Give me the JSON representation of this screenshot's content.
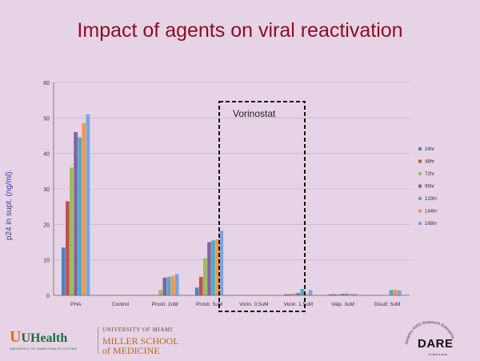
{
  "slide": {
    "title": "Impact of agents on viral reactivation",
    "annotation": "Vorinostat",
    "footer": {
      "uhealth": "UHealth",
      "uhealth_sub": "UNIVERSITY OF MIAMI HEALTH SYSTEM",
      "university": "UNIVERSITY OF MIAMI",
      "school_line1": "MILLER SCHOOL",
      "school_line2": "of MEDICINE",
      "dare": "DARE",
      "dare_ring": "Delaney AIDS Research Enterprise",
      "dare_sub": "to find a cure"
    }
  },
  "chart_data": {
    "type": "bar",
    "title": "Impact of agents on viral reactivation",
    "ylabel": "p24 in supt. (ng/ml).",
    "xlabel": "",
    "ylim": [
      0,
      60
    ],
    "yticks": [
      0,
      10,
      20,
      30,
      40,
      50,
      60
    ],
    "grid": true,
    "legend_position": "right",
    "categories": [
      "PHA",
      "Control",
      "Prostr. 2uM",
      "Prostr. 5uM",
      "Vorin. 0.5uM",
      "Vorin. 1.5uM",
      "Valp. 3uM",
      "Disulf. 5uM"
    ],
    "series": [
      {
        "name": "24hr",
        "color": "#4f81bd",
        "values": [
          13.5,
          0,
          0,
          2.2,
          0,
          0.3,
          0.3,
          0
        ]
      },
      {
        "name": "48hr",
        "color": "#c0504d",
        "values": [
          26.5,
          0,
          0,
          5.2,
          0,
          0.3,
          0.3,
          0
        ]
      },
      {
        "name": "72hr",
        "color": "#9bbb59",
        "values": [
          36,
          0,
          1.5,
          10.5,
          0,
          0.5,
          0.3,
          0
        ]
      },
      {
        "name": "96hr",
        "color": "#8064a2",
        "values": [
          46,
          0,
          5,
          15,
          0,
          0.6,
          0.4,
          0
        ]
      },
      {
        "name": "120hr",
        "color": "#4bacc6",
        "values": [
          44.5,
          0,
          5.2,
          15.5,
          0,
          1.8,
          0.5,
          1.5
        ]
      },
      {
        "name": "144hr",
        "color": "#f79646",
        "values": [
          48.5,
          0,
          5.5,
          15.8,
          0,
          0.4,
          0.4,
          1.6
        ]
      },
      {
        "name": "168hr",
        "color": "#7ba4e0",
        "values": [
          51,
          0,
          6,
          18.2,
          0,
          1.5,
          0.4,
          1.4
        ]
      }
    ]
  }
}
